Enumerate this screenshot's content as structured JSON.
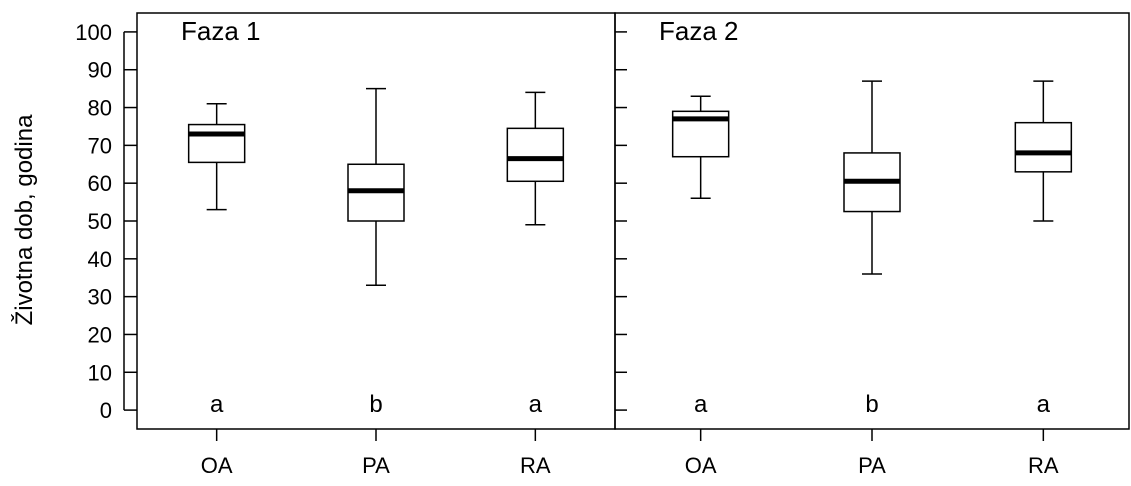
{
  "chart_data": {
    "type": "box",
    "ylabel": "Životna dob, godina",
    "ylim": [
      -5,
      105
    ],
    "yticks": [
      0,
      10,
      20,
      30,
      40,
      50,
      60,
      70,
      80,
      90,
      100
    ],
    "categories": [
      "OA",
      "PA",
      "RA"
    ],
    "panels": [
      {
        "title": "Faza 1",
        "boxes": [
          {
            "category": "OA",
            "min": 53,
            "q1": 65.5,
            "median": 73,
            "q3": 75.5,
            "max": 81,
            "group": "a"
          },
          {
            "category": "PA",
            "min": 33,
            "q1": 50,
            "median": 58,
            "q3": 65,
            "max": 85,
            "group": "b"
          },
          {
            "category": "RA",
            "min": 49,
            "q1": 60.5,
            "median": 66.5,
            "q3": 74.5,
            "max": 84,
            "group": "a"
          }
        ]
      },
      {
        "title": "Faza 2",
        "boxes": [
          {
            "category": "OA",
            "min": 56,
            "q1": 67,
            "median": 77,
            "q3": 79,
            "max": 83,
            "group": "a"
          },
          {
            "category": "PA",
            "min": 36,
            "q1": 52.5,
            "median": 60.5,
            "q3": 68,
            "max": 87,
            "group": "b"
          },
          {
            "category": "RA",
            "min": 50,
            "q1": 63,
            "median": 68,
            "q3": 76,
            "max": 87,
            "group": "a"
          }
        ]
      }
    ]
  }
}
